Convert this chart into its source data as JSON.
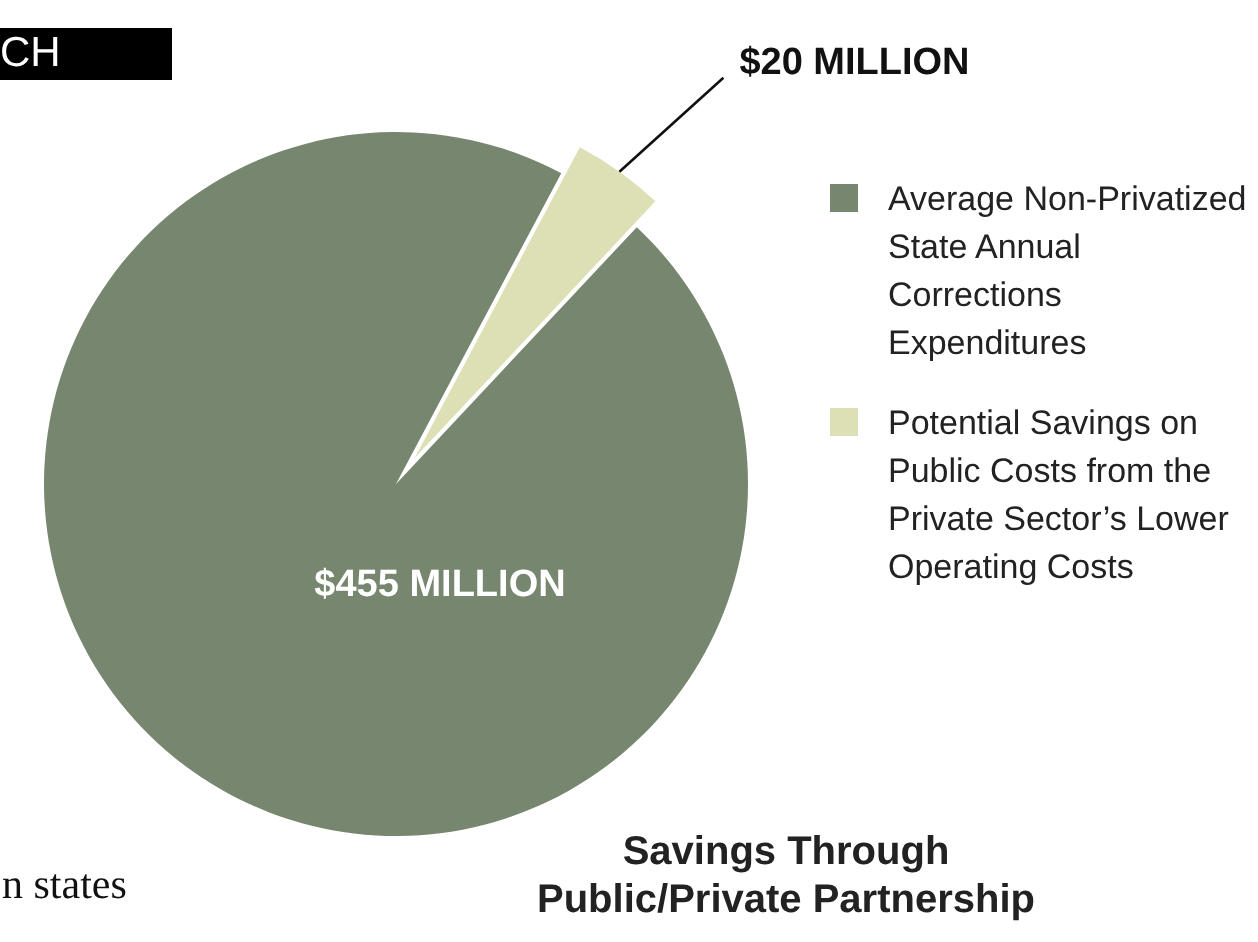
{
  "chart_data": {
    "type": "pie",
    "title": "Savings Through\nPublic/Private Partnership",
    "categories": [
      "Average Non-Privatized State Annual Corrections Expenditures",
      "Potential Savings on Public Costs from the Private Sector’s Lower Operating Costs"
    ],
    "values": [
      455,
      20
    ],
    "colors": [
      "#76866f",
      "#dde0b4"
    ],
    "value_labels": [
      "$455 MILLION",
      "$20 MILLION"
    ],
    "legend": "right",
    "annotations": [
      "CH",
      "n states"
    ]
  }
}
